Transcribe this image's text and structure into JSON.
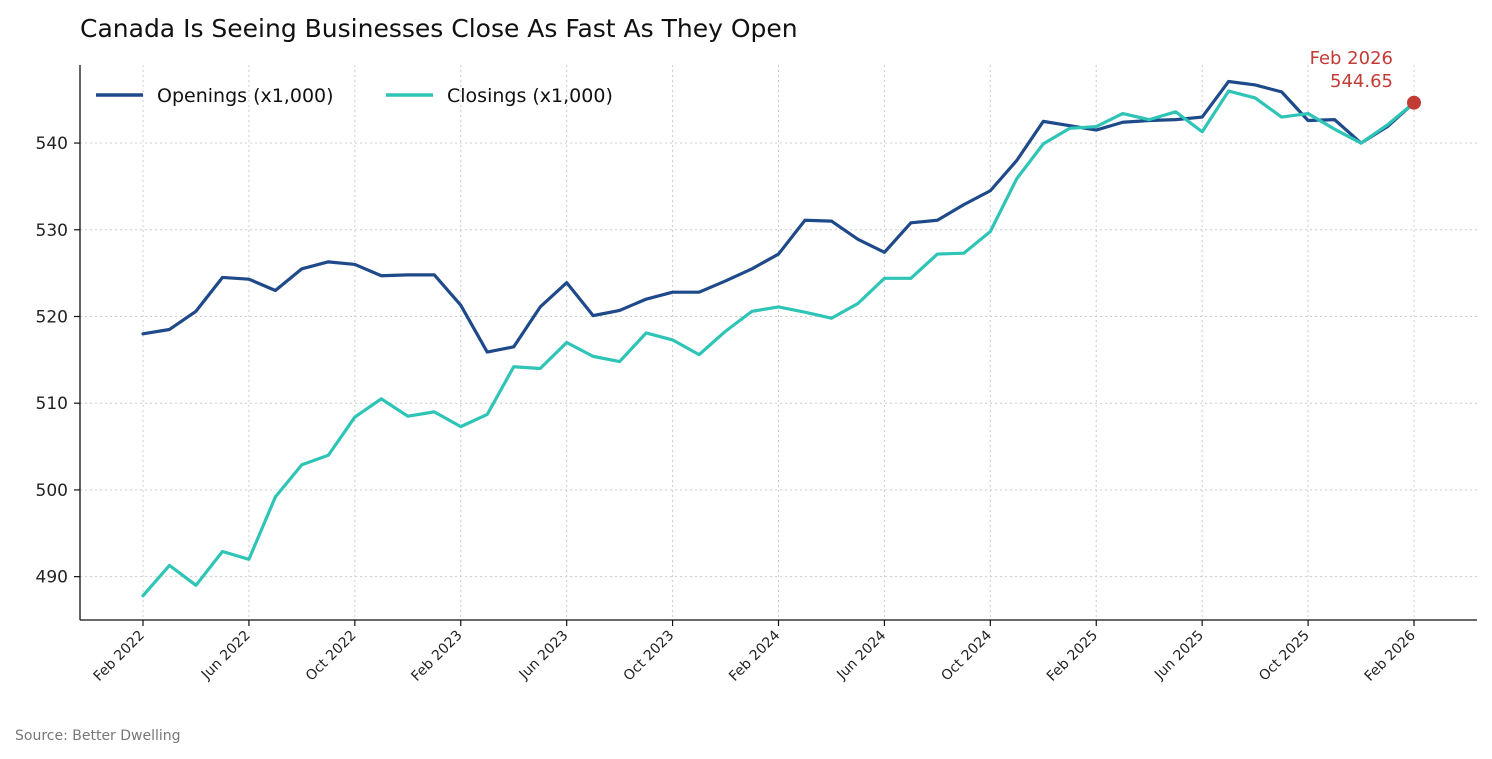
{
  "chart_data": {
    "type": "line",
    "title": "Canada Is Seeing Businesses Close As Fast As They Open",
    "source": "Source: Better Dwelling",
    "xlabel": "",
    "ylabel": "",
    "ylim": [
      485,
      549
    ],
    "yticks": [
      490,
      500,
      510,
      520,
      530,
      540
    ],
    "xticks": [
      "Feb 2022",
      "Jun 2022",
      "Oct 2022",
      "Feb 2023",
      "Jun 2023",
      "Oct 2023",
      "Feb 2024",
      "Jun 2024",
      "Oct 2024",
      "Feb 2025",
      "Jun 2025",
      "Oct 2025",
      "Feb 2026"
    ],
    "grid": true,
    "legend_position": "top-left",
    "x": [
      "2022-02",
      "2022-03",
      "2022-04",
      "2022-05",
      "2022-06",
      "2022-07",
      "2022-08",
      "2022-09",
      "2022-10",
      "2022-11",
      "2022-12",
      "2023-01",
      "2023-02",
      "2023-03",
      "2023-04",
      "2023-05",
      "2023-06",
      "2023-07",
      "2023-08",
      "2023-09",
      "2023-10",
      "2023-11",
      "2023-12",
      "2024-01",
      "2024-02",
      "2024-03",
      "2024-04",
      "2024-05",
      "2024-06",
      "2024-07",
      "2024-08",
      "2024-09",
      "2024-10",
      "2024-11",
      "2024-12",
      "2025-01",
      "2025-02",
      "2025-03",
      "2025-04",
      "2025-05",
      "2025-06",
      "2025-07",
      "2025-08",
      "2025-09",
      "2025-10",
      "2025-11",
      "2025-12",
      "2026-01",
      "2026-02"
    ],
    "series": [
      {
        "name": "Openings (x1,000)",
        "color": "#1f4a8a",
        "values": [
          518.0,
          518.5,
          520.6,
          524.5,
          524.3,
          523.0,
          525.5,
          526.3,
          526.0,
          524.7,
          524.8,
          524.8,
          521.3,
          515.9,
          516.5,
          521.1,
          523.9,
          520.1,
          520.7,
          522.0,
          522.8,
          522.8,
          524.1,
          525.5,
          527.2,
          531.1,
          531.0,
          528.9,
          527.4,
          530.8,
          531.1,
          532.9,
          534.5,
          538.0,
          542.5,
          542.0,
          541.5,
          542.4,
          542.6,
          542.7,
          543.0,
          547.1,
          546.7,
          545.9,
          542.6,
          542.7,
          540.0,
          541.9,
          544.65
        ]
      },
      {
        "name": "Closings (x1,000)",
        "color": "#2ec4b6",
        "values": [
          487.8,
          491.3,
          489.0,
          492.9,
          492.0,
          499.2,
          502.9,
          504.0,
          508.4,
          510.5,
          508.5,
          509.0,
          507.3,
          508.7,
          514.2,
          514.0,
          517.0,
          515.4,
          514.8,
          518.1,
          517.3,
          515.6,
          518.3,
          520.6,
          521.1,
          520.5,
          519.8,
          521.5,
          524.4,
          524.4,
          527.2,
          527.3,
          529.8,
          535.9,
          539.9,
          541.7,
          541.9,
          543.4,
          542.7,
          543.6,
          541.3,
          546.0,
          545.2,
          543.0,
          543.4,
          541.6,
          540.0,
          542.1,
          544.65
        ]
      }
    ],
    "annotation": {
      "label": "Feb 2026",
      "value_text": "544.65",
      "x": "2026-02",
      "y": 544.65,
      "color": "#c23b35"
    }
  }
}
